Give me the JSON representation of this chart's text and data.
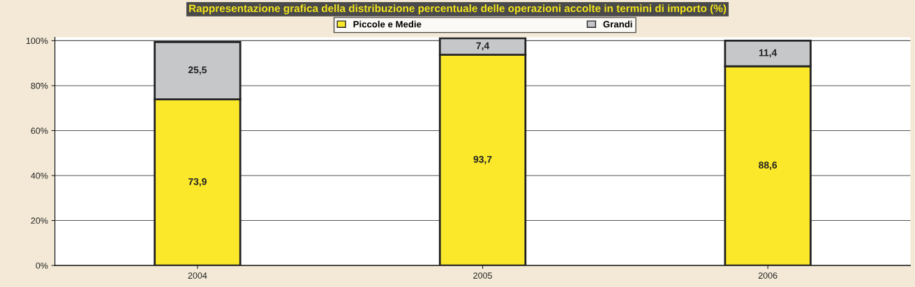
{
  "chart_data": {
    "type": "bar",
    "title": "Rappresentazione grafica della distribuzione percentuale delle operazioni accolte in termini di importo (%)",
    "categories": [
      "2004",
      "2005",
      "2006"
    ],
    "stacked": true,
    "series": [
      {
        "name": "Piccole e Medie",
        "color": "#fbe82b",
        "values": [
          73.9,
          93.7,
          88.6
        ],
        "value_labels": [
          "73,9",
          "93,7",
          "88,6"
        ]
      },
      {
        "name": "Grandi",
        "color": "#c6c7c9",
        "values": [
          25.5,
          7.4,
          11.4
        ],
        "value_labels": [
          "25,5",
          "7,4",
          "11,4"
        ]
      }
    ],
    "ylim": [
      0,
      101.5
    ],
    "yticks": [
      {
        "value": 0,
        "label": "0%"
      },
      {
        "value": 20,
        "label": "20%"
      },
      {
        "value": 40,
        "label": "40%"
      },
      {
        "value": 60,
        "label": "60%"
      },
      {
        "value": 80,
        "label": "80%"
      },
      {
        "value": 100,
        "label": "100%"
      }
    ],
    "grid": "y",
    "legend": "top"
  }
}
